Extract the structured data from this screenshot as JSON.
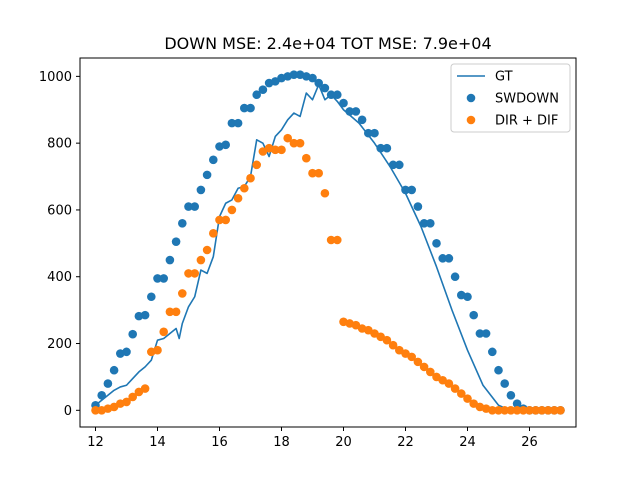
{
  "chart_data": {
    "type": "line",
    "title": "DOWN MSE: 2.4e+04 TOT MSE: 7.9e+04",
    "xlabel": "",
    "ylabel": "",
    "xlim": [
      11.5,
      27.5
    ],
    "ylim": [
      -50,
      1055
    ],
    "xticks": [
      12,
      14,
      16,
      18,
      20,
      22,
      24,
      26
    ],
    "yticks": [
      0,
      200,
      400,
      600,
      800,
      1000
    ],
    "grid": false,
    "legend_position": "top-right",
    "colors": {
      "blue": "#1f77b4",
      "orange": "#ff7f0e"
    },
    "series": [
      {
        "name": "GT",
        "kind": "line",
        "color": "#1f77b4",
        "x": [
          12,
          12.2,
          12.4,
          12.6,
          12.8,
          13.0,
          13.2,
          13.4,
          13.6,
          13.8,
          14.0,
          14.2,
          14.4,
          14.6,
          14.7,
          14.8,
          15.0,
          15.2,
          15.4,
          15.6,
          15.8,
          16.0,
          16.2,
          16.4,
          16.6,
          16.8,
          17.0,
          17.2,
          17.4,
          17.6,
          17.8,
          18.0,
          18.2,
          18.4,
          18.6,
          18.8,
          19.0,
          19.2,
          19.4,
          19.6,
          19.8,
          20.0,
          20.5,
          21.0,
          21.5,
          22.0,
          22.5,
          23.0,
          23.5,
          24.0,
          24.5,
          25.0,
          25.3,
          25.6,
          26.0,
          26.5,
          27.0
        ],
        "y": [
          15,
          30,
          45,
          60,
          70,
          75,
          95,
          115,
          130,
          150,
          210,
          215,
          230,
          245,
          215,
          260,
          310,
          340,
          420,
          410,
          460,
          580,
          620,
          630,
          665,
          670,
          700,
          810,
          800,
          760,
          820,
          840,
          870,
          890,
          880,
          950,
          930,
          975,
          930,
          945,
          925,
          900,
          860,
          800,
          730,
          650,
          550,
          430,
          300,
          180,
          75,
          15,
          3,
          0,
          0,
          0,
          0
        ]
      },
      {
        "name": "SWDOWN",
        "kind": "scatter",
        "color": "#1f77b4",
        "x": [
          12.0,
          12.2,
          12.4,
          12.6,
          12.8,
          13.0,
          13.2,
          13.4,
          13.6,
          13.8,
          14.0,
          14.2,
          14.4,
          14.6,
          14.8,
          15.0,
          15.2,
          15.4,
          15.6,
          15.8,
          16.0,
          16.2,
          16.4,
          16.6,
          16.8,
          17.0,
          17.2,
          17.4,
          17.6,
          17.8,
          18.0,
          18.2,
          18.4,
          18.6,
          18.8,
          19.0,
          19.2,
          19.4,
          19.6,
          19.8,
          20.0,
          20.2,
          20.4,
          20.6,
          20.8,
          21.0,
          21.2,
          21.4,
          21.6,
          21.8,
          22.0,
          22.2,
          22.4,
          22.6,
          22.8,
          23.0,
          23.2,
          23.4,
          23.6,
          23.8,
          24.0,
          24.2,
          24.4,
          24.6,
          24.8,
          25.0,
          25.2,
          25.4,
          25.6,
          25.8,
          26.0,
          26.2,
          26.4,
          26.6,
          26.8,
          27.0
        ],
        "y": [
          15,
          45,
          80,
          120,
          170,
          175,
          228,
          282,
          285,
          340,
          395,
          395,
          450,
          505,
          560,
          610,
          610,
          660,
          705,
          750,
          790,
          795,
          860,
          860,
          905,
          905,
          945,
          960,
          980,
          985,
          995,
          1000,
          1005,
          1005,
          1000,
          995,
          980,
          965,
          945,
          945,
          920,
          895,
          895,
          870,
          830,
          830,
          785,
          785,
          735,
          735,
          660,
          660,
          610,
          560,
          560,
          500,
          455,
          455,
          400,
          345,
          340,
          285,
          230,
          230,
          175,
          120,
          80,
          45,
          20,
          5,
          0,
          0,
          0,
          0,
          0,
          0
        ]
      },
      {
        "name": "DIR + DIF",
        "kind": "scatter",
        "color": "#ff7f0e",
        "x": [
          12.0,
          12.2,
          12.4,
          12.6,
          12.8,
          13.0,
          13.2,
          13.4,
          13.6,
          13.8,
          14.0,
          14.2,
          14.4,
          14.6,
          14.8,
          15.0,
          15.2,
          15.4,
          15.6,
          15.8,
          16.0,
          16.2,
          16.4,
          16.6,
          16.8,
          17.0,
          17.2,
          17.4,
          17.6,
          17.8,
          18.0,
          18.2,
          18.4,
          18.6,
          18.8,
          19.0,
          19.2,
          19.4,
          19.6,
          19.8,
          20.0,
          20.2,
          20.4,
          20.6,
          20.8,
          21.0,
          21.2,
          21.4,
          21.6,
          21.8,
          22.0,
          22.2,
          22.4,
          22.6,
          22.8,
          23.0,
          23.2,
          23.4,
          23.6,
          23.8,
          24.0,
          24.2,
          24.4,
          24.6,
          24.8,
          25.0,
          25.2,
          25.4,
          25.6,
          25.8,
          26.0,
          26.2,
          26.4,
          26.6,
          26.8,
          27.0
        ],
        "y": [
          0,
          0,
          5,
          10,
          20,
          25,
          40,
          55,
          65,
          175,
          180,
          235,
          295,
          295,
          350,
          410,
          410,
          450,
          480,
          530,
          570,
          570,
          600,
          635,
          665,
          695,
          735,
          775,
          785,
          780,
          780,
          815,
          800,
          800,
          755,
          710,
          710,
          650,
          510,
          510,
          265,
          260,
          255,
          245,
          240,
          230,
          220,
          210,
          195,
          180,
          170,
          160,
          145,
          130,
          115,
          100,
          90,
          80,
          65,
          50,
          35,
          20,
          10,
          5,
          0,
          0,
          0,
          0,
          0,
          0,
          0,
          0,
          0,
          0,
          0,
          0
        ]
      }
    ]
  }
}
